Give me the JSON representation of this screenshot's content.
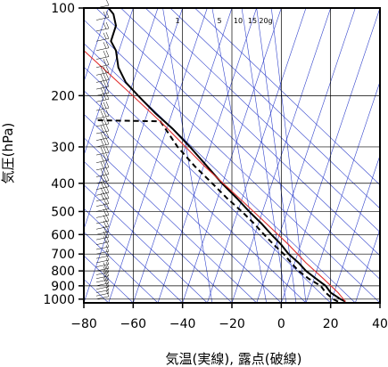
{
  "chart_data": {
    "type": "line",
    "title": "",
    "xlabel": "気温(実線), 露点(破線)",
    "ylabel": "気圧(hPa)",
    "xlim": [
      -80,
      40
    ],
    "ylim": [
      1030,
      100
    ],
    "y_scale": "log",
    "x_ticks": [
      -80,
      -60,
      -40,
      -20,
      0,
      20,
      40
    ],
    "x_tick_labels": [
      "−80",
      "−60",
      "−40",
      "−20",
      "0",
      "20",
      "40"
    ],
    "y_ticks": [
      100,
      200,
      300,
      400,
      500,
      600,
      700,
      800,
      900,
      1000
    ],
    "y_tick_labels": [
      "100",
      "200",
      "300",
      "400",
      "500",
      "600",
      "700",
      "800",
      "900",
      "1000"
    ],
    "grid": true,
    "mixing_ratio_labels": [
      "1",
      "5",
      "10",
      "15",
      "20g"
    ],
    "colors": {
      "background_lines": "#3344cc",
      "temperature": "#000000",
      "dewpoint": "#000000",
      "parcel": "#e03030",
      "grid": "#000000"
    },
    "series": [
      {
        "key": "temperature",
        "style": "solid",
        "x": [
          26,
          24,
          20,
          18,
          14,
          10,
          7,
          3,
          0,
          -4,
          -8,
          -13,
          -18,
          -24,
          -30,
          -37,
          -44,
          -51,
          -58,
          -63,
          -66,
          -67,
          -69,
          -67,
          -68,
          -70
        ],
        "y": [
          1020,
          1000,
          950,
          900,
          850,
          800,
          750,
          700,
          650,
          600,
          550,
          500,
          450,
          400,
          350,
          300,
          260,
          230,
          200,
          180,
          160,
          140,
          130,
          115,
          105,
          100
        ]
      },
      {
        "key": "dewpoint",
        "style": "dashed",
        "x": [
          23,
          21,
          18,
          16,
          11,
          7,
          4,
          1,
          -3,
          -7,
          -11,
          -16,
          -22,
          -28,
          -35,
          -42,
          -49,
          -75
        ],
        "y": [
          1020,
          1000,
          950,
          900,
          850,
          800,
          750,
          700,
          650,
          600,
          550,
          500,
          450,
          400,
          350,
          300,
          245,
          243
        ]
      },
      {
        "key": "parcel",
        "style": "solid",
        "x": [
          26,
          23,
          17,
          10,
          3,
          -6,
          -17,
          -31,
          -48,
          -63,
          -80
        ],
        "y": [
          1020,
          950,
          850,
          750,
          650,
          550,
          450,
          350,
          250,
          190,
          140
        ]
      }
    ],
    "wind_barbs": {
      "p": [
        1000,
        975,
        950,
        925,
        900,
        875,
        850,
        825,
        800,
        775,
        750,
        725,
        700,
        675,
        650,
        625,
        600,
        575,
        550,
        525,
        500,
        480,
        460,
        440,
        420,
        400,
        380,
        360,
        340,
        320,
        300,
        285,
        270,
        255,
        240,
        225,
        210,
        200,
        190,
        180,
        170,
        160,
        150,
        140,
        130,
        120,
        110,
        100
      ],
      "speed": [
        10,
        10,
        10,
        10,
        15,
        15,
        15,
        15,
        15,
        10,
        10,
        10,
        10,
        10,
        15,
        15,
        15,
        20,
        20,
        20,
        20,
        20,
        25,
        25,
        25,
        25,
        25,
        25,
        25,
        25,
        30,
        30,
        30,
        30,
        30,
        30,
        30,
        30,
        25,
        25,
        25,
        20,
        20,
        20,
        15,
        15,
        15,
        10
      ]
    }
  }
}
